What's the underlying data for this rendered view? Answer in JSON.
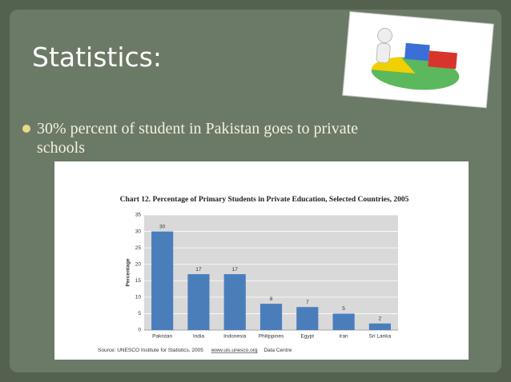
{
  "slide": {
    "title": "Statistics:",
    "bullet": "30% percent of student in Pakistan goes to private schools"
  },
  "chart_data": {
    "type": "bar",
    "title": "Chart 12. Percentage of Primary Students in Private Education, Selected Countries, 2005",
    "y_label": "Percentage",
    "categories": [
      "Pakistan",
      "India",
      "Indonesia",
      "Philippines",
      "Egypt",
      "Iran",
      "Sri Lanka"
    ],
    "values": [
      30,
      17,
      17,
      8,
      7,
      5,
      2
    ],
    "color": "#4a7ebb",
    "ylim": [
      0,
      35
    ],
    "yticks": [
      0,
      5,
      10,
      15,
      20,
      25,
      30,
      35
    ],
    "grid": true,
    "source": "Source: UNESCO Institute for Statistics, 2005",
    "source_link": "www.uis.unesco.org",
    "source_note": "Data Centre"
  }
}
